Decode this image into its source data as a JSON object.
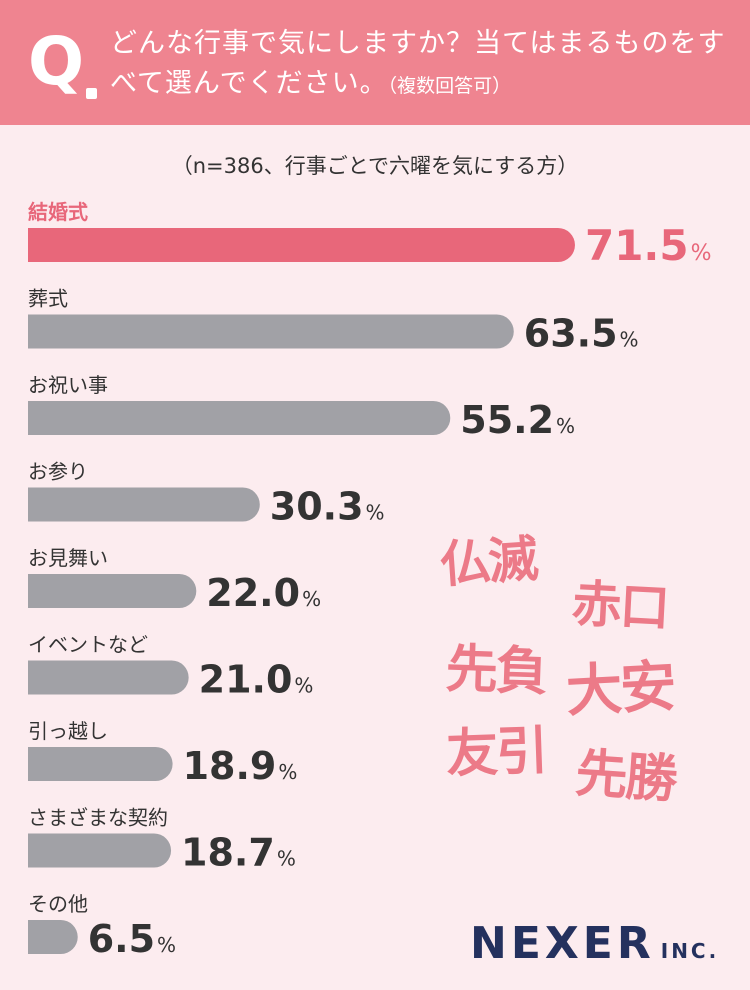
{
  "header": {
    "q_letter": "Q",
    "question": "どんな行事で気にしますか？当てはまるものをすべて選んでください。",
    "note": "（複数回答可）"
  },
  "subtitle": "（n=386、行事ごとで六曜を気にする方）",
  "chart_data": {
    "type": "bar",
    "orientation": "horizontal",
    "categories": [
      "結婚式",
      "葬式",
      "お祝い事",
      "お参り",
      "お見舞い",
      "イベントなど",
      "引っ越し",
      "さまざまな契約",
      "その他"
    ],
    "values": [
      71.5,
      63.5,
      55.2,
      30.3,
      22.0,
      21.0,
      18.9,
      18.7,
      6.5
    ],
    "value_labels": [
      "71.5",
      "63.5",
      "55.2",
      "30.3",
      "22.0",
      "21.0",
      "18.9",
      "18.7",
      "6.5"
    ],
    "unit": "%",
    "highlight_index": 0,
    "highlight_color": "#e8677a",
    "bar_color": "#a1a1a6",
    "label_color": "#333333"
  },
  "decoration": {
    "words": [
      "仏滅",
      "赤口",
      "先負",
      "大安",
      "友引",
      "先勝"
    ],
    "color": "#ec7a88"
  },
  "logo": {
    "name": "NEXER",
    "suffix": "INC."
  }
}
